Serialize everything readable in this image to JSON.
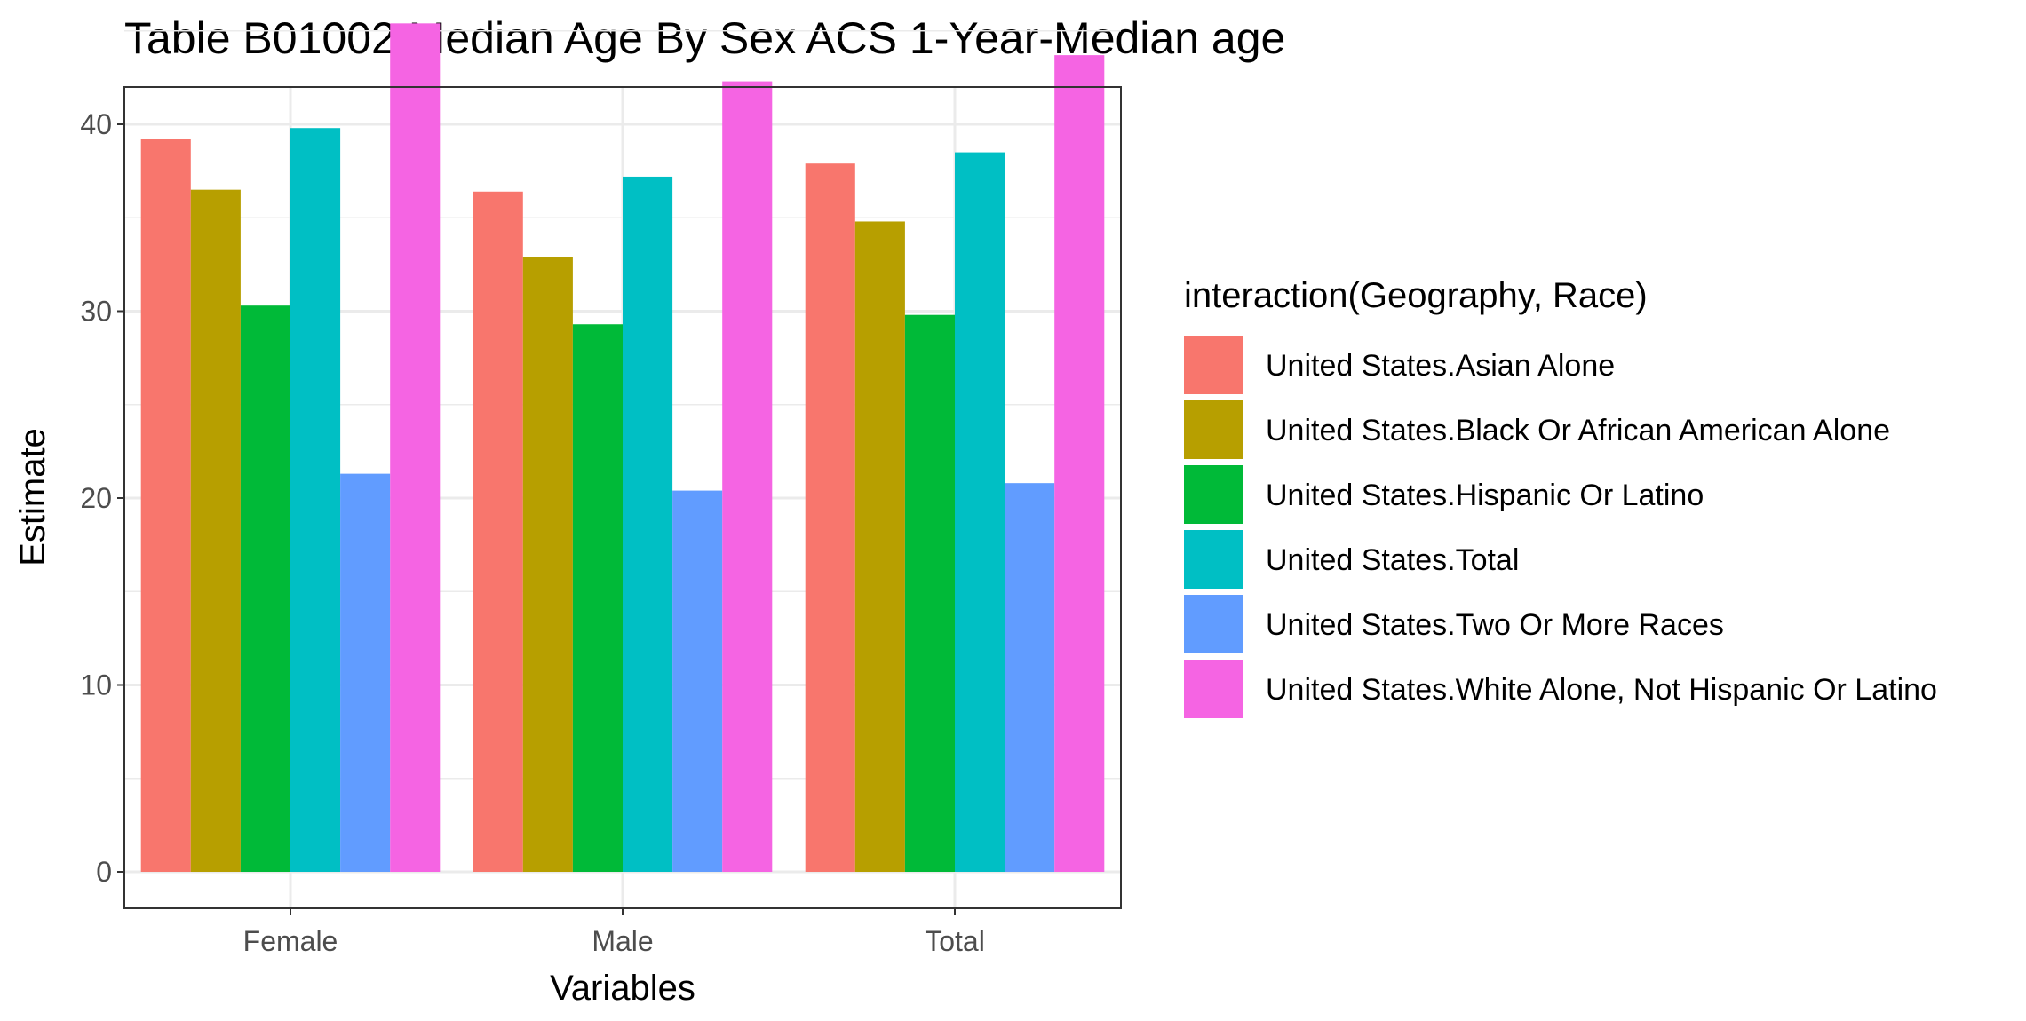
{
  "chart_data": {
    "type": "bar",
    "title": "Table B01002 Median Age By Sex ACS 1-Year-Median age",
    "xlabel": "Variables",
    "ylabel": "Estimate",
    "categories": [
      "Female",
      "Male",
      "Total"
    ],
    "ylim": [
      0,
      47
    ],
    "yticks": [
      0,
      10,
      20,
      30,
      40
    ],
    "grid": true,
    "legend": {
      "title": "interaction(Geography, Race)",
      "placement": "right"
    },
    "series": [
      {
        "name": "United States.Asian Alone",
        "color": "#F8766D",
        "values": [
          39.2,
          36.4,
          37.9
        ]
      },
      {
        "name": "United States.Black Or African American Alone",
        "color": "#B79F00",
        "values": [
          36.5,
          32.9,
          34.8
        ]
      },
      {
        "name": "United States.Hispanic Or Latino",
        "color": "#00BA38",
        "values": [
          30.3,
          29.3,
          29.8
        ]
      },
      {
        "name": "United States.Total",
        "color": "#00BFC4",
        "values": [
          39.8,
          37.2,
          38.5
        ]
      },
      {
        "name": "United States.Two Or More Races",
        "color": "#619CFF",
        "values": [
          21.3,
          20.4,
          20.8
        ]
      },
      {
        "name": "United States.White Alone, Not Hispanic Or Latino",
        "color": "#F564E3",
        "values": [
          45.4,
          42.3,
          43.7
        ]
      }
    ]
  }
}
